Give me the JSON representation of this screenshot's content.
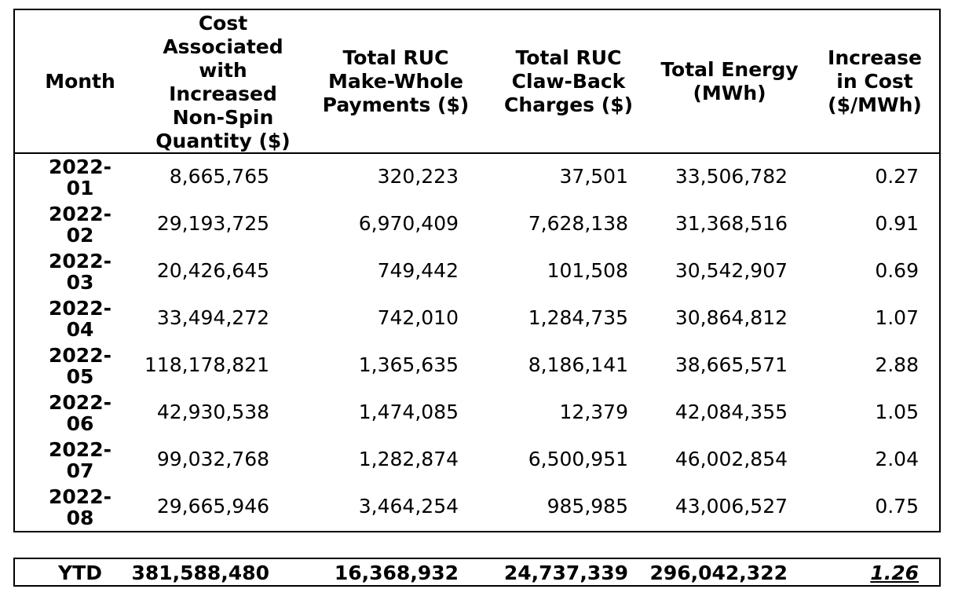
{
  "table": {
    "headers": [
      "Month",
      "Cost Associated with Increased Non-Spin Quantity ($)",
      "Total RUC Make-Whole Payments ($)",
      "Total RUC Claw-Back Charges ($)",
      "Total Energy (MWh)",
      "Increase in Cost ($/MWh)"
    ],
    "rows": [
      {
        "month": "2022-01",
        "cost": "8,665,765",
        "make_whole": "320,223",
        "claw_back": "37,501",
        "energy": "33,506,782",
        "increase": "0.27"
      },
      {
        "month": "2022-02",
        "cost": "29,193,725",
        "make_whole": "6,970,409",
        "claw_back": "7,628,138",
        "energy": "31,368,516",
        "increase": "0.91"
      },
      {
        "month": "2022-03",
        "cost": "20,426,645",
        "make_whole": "749,442",
        "claw_back": "101,508",
        "energy": "30,542,907",
        "increase": "0.69"
      },
      {
        "month": "2022-04",
        "cost": "33,494,272",
        "make_whole": "742,010",
        "claw_back": "1,284,735",
        "energy": "30,864,812",
        "increase": "1.07"
      },
      {
        "month": "2022-05",
        "cost": "118,178,821",
        "make_whole": "1,365,635",
        "claw_back": "8,186,141",
        "energy": "38,665,571",
        "increase": "2.88"
      },
      {
        "month": "2022-06",
        "cost": "42,930,538",
        "make_whole": "1,474,085",
        "claw_back": "12,379",
        "energy": "42,084,355",
        "increase": "1.05"
      },
      {
        "month": "2022-07",
        "cost": "99,032,768",
        "make_whole": "1,282,874",
        "claw_back": "6,500,951",
        "energy": "46,002,854",
        "increase": "2.04"
      },
      {
        "month": "2022-08",
        "cost": "29,665,946",
        "make_whole": "3,464,254",
        "claw_back": "985,985",
        "energy": "43,006,527",
        "increase": "0.75"
      }
    ],
    "ytd": {
      "label": "YTD",
      "cost": "381,588,480",
      "make_whole": "16,368,932",
      "claw_back": "24,737,339",
      "energy": "296,042,322",
      "increase": "1.26"
    }
  }
}
